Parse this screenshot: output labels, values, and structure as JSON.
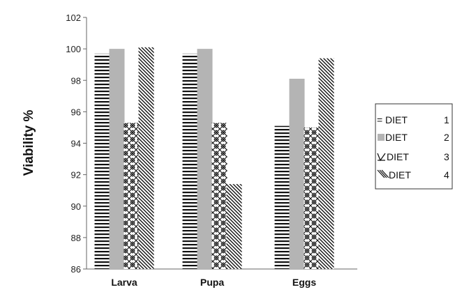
{
  "chart_data": {
    "type": "bar",
    "title": "",
    "xlabel": "",
    "ylabel": "Viability %",
    "ylim": [
      86,
      102
    ],
    "yticks": [
      "86",
      "88",
      "90",
      "92",
      "94",
      "96",
      "98",
      "100",
      "102"
    ],
    "categories": [
      "Larva",
      "Pupa",
      "Eggs"
    ],
    "series": [
      {
        "name": "DIET",
        "number": "1",
        "pattern": "horizontal-lines",
        "values": [
          99.7,
          99.7,
          95.1
        ]
      },
      {
        "name": "DIET",
        "number": "2",
        "pattern": "solid-gray",
        "values": [
          100.0,
          100.0,
          98.1
        ]
      },
      {
        "name": "DIET",
        "number": "3",
        "pattern": "crosshatch",
        "values": [
          95.3,
          95.3,
          95.0
        ]
      },
      {
        "name": "DIET",
        "number": "4",
        "pattern": "diagonal-lines",
        "values": [
          100.1,
          91.4,
          99.4
        ]
      }
    ],
    "legend_position": "right",
    "grid": false,
    "colors": {
      "solid": "#b4b4b4",
      "lines": "#111111",
      "axis": "#666666"
    }
  }
}
